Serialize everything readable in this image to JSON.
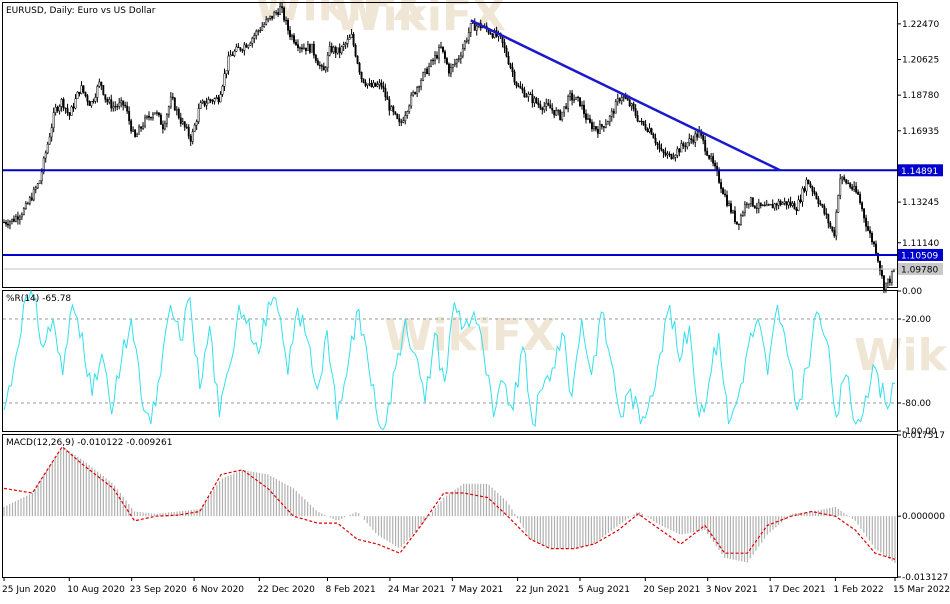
{
  "colors": {
    "candle": "#000000",
    "level_line": "#0000cc",
    "trend_line": "#1a1acc",
    "wpr_line": "#33e0ec",
    "macd_hist": "#b0b0b0",
    "macd_signal": "#e00000",
    "grid_dash": "#9a9a9a",
    "price_tag_bg": "#0000cc",
    "price_tag_text": "#ffffff",
    "current_tag_bg": "#c8c8c8"
  },
  "chart_data": [
    {
      "type": "candlestick",
      "pane": "price",
      "title": "EURUSD, Daily:  Euro vs US Dollar",
      "y_ticks": [
        "1.22470",
        "1.20625",
        "1.18780",
        "1.16935",
        "1.13245",
        "1.11140"
      ],
      "y_tick_values": [
        1.2247,
        1.20625,
        1.1878,
        1.16935,
        1.13245,
        1.1114
      ],
      "ylim": [
        1.0885,
        1.2355
      ],
      "horizontal_levels": [
        {
          "label": "1.14891",
          "value": 1.14891
        },
        {
          "label": "1.10509",
          "value": 1.10509
        }
      ],
      "current_price": {
        "label": "1.09780",
        "value": 1.0978
      },
      "trendline": {
        "start": {
          "date": "2021-05-20",
          "value": 1.2265
        },
        "end": {
          "date": "2021-12-24",
          "value": 1.1489
        }
      },
      "series_points": [
        [
          "2020-06-25",
          1.122
        ],
        [
          "2020-07-01",
          1.123
        ],
        [
          "2020-07-10",
          1.129
        ],
        [
          "2020-07-20",
          1.143
        ],
        [
          "2020-07-25",
          1.16
        ],
        [
          "2020-07-31",
          1.18
        ],
        [
          "2020-08-05",
          1.185
        ],
        [
          "2020-08-10",
          1.177
        ],
        [
          "2020-08-18",
          1.192
        ],
        [
          "2020-08-25",
          1.183
        ],
        [
          "2020-09-01",
          1.195
        ],
        [
          "2020-09-05",
          1.185
        ],
        [
          "2020-09-10",
          1.182
        ],
        [
          "2020-09-18",
          1.183
        ],
        [
          "2020-09-25",
          1.165
        ],
        [
          "2020-10-01",
          1.173
        ],
        [
          "2020-10-09",
          1.18
        ],
        [
          "2020-10-15",
          1.172
        ],
        [
          "2020-10-21",
          1.186
        ],
        [
          "2020-10-28",
          1.174
        ],
        [
          "2020-11-04",
          1.165
        ],
        [
          "2020-11-10",
          1.182
        ],
        [
          "2020-11-16",
          1.185
        ],
        [
          "2020-11-23",
          1.186
        ],
        [
          "2020-12-01",
          1.208
        ],
        [
          "2020-12-08",
          1.212
        ],
        [
          "2020-12-14",
          1.215
        ],
        [
          "2020-12-22",
          1.222
        ],
        [
          "2021-01-06",
          1.233
        ],
        [
          "2021-01-12",
          1.22
        ],
        [
          "2021-01-20",
          1.213
        ],
        [
          "2021-01-28",
          1.212
        ],
        [
          "2021-02-05",
          1.199
        ],
        [
          "2021-02-10",
          1.212
        ],
        [
          "2021-02-16",
          1.21
        ],
        [
          "2021-02-25",
          1.218
        ],
        [
          "2021-03-04",
          1.197
        ],
        [
          "2021-03-10",
          1.192
        ],
        [
          "2021-03-18",
          1.193
        ],
        [
          "2021-03-24",
          1.181
        ],
        [
          "2021-03-31",
          1.172
        ],
        [
          "2021-04-06",
          1.183
        ],
        [
          "2021-04-14",
          1.195
        ],
        [
          "2021-04-22",
          1.204
        ],
        [
          "2021-04-29",
          1.212
        ],
        [
          "2021-05-05",
          1.2
        ],
        [
          "2021-05-12",
          1.208
        ],
        [
          "2021-05-20",
          1.223
        ],
        [
          "2021-05-26",
          1.224
        ],
        [
          "2021-06-02",
          1.221
        ],
        [
          "2021-06-10",
          1.217
        ],
        [
          "2021-06-16",
          1.205
        ],
        [
          "2021-06-22",
          1.192
        ],
        [
          "2021-06-30",
          1.187
        ],
        [
          "2021-07-07",
          1.183
        ],
        [
          "2021-07-15",
          1.181
        ],
        [
          "2021-07-22",
          1.177
        ],
        [
          "2021-07-29",
          1.187
        ],
        [
          "2021-08-05",
          1.184
        ],
        [
          "2021-08-11",
          1.173
        ],
        [
          "2021-08-18",
          1.17
        ],
        [
          "2021-08-26",
          1.176
        ],
        [
          "2021-09-03",
          1.188
        ],
        [
          "2021-09-10",
          1.182
        ],
        [
          "2021-09-17",
          1.173
        ],
        [
          "2021-09-24",
          1.17
        ],
        [
          "2021-10-01",
          1.158
        ],
        [
          "2021-10-07",
          1.156
        ],
        [
          "2021-10-14",
          1.16
        ],
        [
          "2021-10-21",
          1.164
        ],
        [
          "2021-10-28",
          1.168
        ],
        [
          "2021-11-03",
          1.158
        ],
        [
          "2021-11-10",
          1.146
        ],
        [
          "2021-11-17",
          1.132
        ],
        [
          "2021-11-24",
          1.121
        ],
        [
          "2021-12-01",
          1.134
        ],
        [
          "2021-12-08",
          1.13
        ],
        [
          "2021-12-15",
          1.129
        ],
        [
          "2021-12-22",
          1.132
        ],
        [
          "2021-12-29",
          1.132
        ],
        [
          "2022-01-05",
          1.13
        ],
        [
          "2022-01-12",
          1.144
        ],
        [
          "2022-01-19",
          1.135
        ],
        [
          "2022-01-26",
          1.124
        ],
        [
          "2022-01-31",
          1.115
        ],
        [
          "2022-02-04",
          1.145
        ],
        [
          "2022-02-10",
          1.142
        ],
        [
          "2022-02-17",
          1.136
        ],
        [
          "2022-02-24",
          1.118
        ],
        [
          "2022-03-02",
          1.107
        ],
        [
          "2022-03-07",
          1.089
        ],
        [
          "2022-03-11",
          1.092
        ],
        [
          "2022-03-15",
          1.0978
        ]
      ]
    },
    {
      "type": "line",
      "pane": "wpr",
      "title": "%R(14) -65.78",
      "y_ticks": [
        "0.00",
        "-20.00",
        "-80.00",
        "-100.00"
      ],
      "y_tick_values": [
        0,
        -20,
        -80,
        -100
      ],
      "dashed_levels": [
        -20,
        -80
      ],
      "ylim": [
        -100,
        0
      ],
      "series": [
        {
          "values": [
            -85,
            -55,
            -10,
            -5,
            -40,
            -20,
            -60,
            -10,
            -30,
            -75,
            -45,
            -88,
            -50,
            -20,
            -75,
            -95,
            -60,
            -10,
            -35,
            -5,
            -70,
            -25,
            -90,
            -55,
            -10,
            -20,
            -45,
            -8,
            -15,
            -60,
            -12,
            -35,
            -70,
            -28,
            -92,
            -60,
            -15,
            -40,
            -85,
            -95,
            -55,
            -20,
            -45,
            -80,
            -30,
            -65,
            -8,
            -25,
            -15,
            -45,
            -90,
            -65,
            -85,
            -40,
            -95,
            -70,
            -55,
            -30,
            -75,
            -20,
            -60,
            -15,
            -50,
            -90,
            -70,
            -95,
            -75,
            -45,
            -10,
            -50,
            -25,
            -90,
            -65,
            -30,
            -95,
            -75,
            -40,
            -20,
            -60,
            -10,
            -45,
            -85,
            -55,
            -15,
            -35,
            -90,
            -60,
            -95,
            -75,
            -55,
            -80,
            -66
          ]
        }
      ]
    },
    {
      "type": "bar",
      "pane": "macd",
      "title": "MACD(12,26,9) -0.010122 -0.009261",
      "y_ticks": [
        "0.017517",
        "0.000000",
        "-0.013127"
      ],
      "y_tick_values": [
        0.017517,
        0.0,
        -0.013127
      ],
      "ylim": [
        -0.013127,
        0.017517
      ],
      "x": [
        "2020-06-25",
        "2020-07-15",
        "2020-08-05",
        "2020-08-20",
        "2020-09-10",
        "2020-09-25",
        "2020-10-10",
        "2020-10-25",
        "2020-11-10",
        "2020-11-25",
        "2020-12-10",
        "2020-12-28",
        "2021-01-15",
        "2021-02-01",
        "2021-02-15",
        "2021-03-01",
        "2021-03-15",
        "2021-03-31",
        "2021-04-15",
        "2021-05-01",
        "2021-05-15",
        "2021-06-01",
        "2021-06-15",
        "2021-07-01",
        "2021-07-15",
        "2021-08-01",
        "2021-08-15",
        "2021-09-01",
        "2021-09-15",
        "2021-10-01",
        "2021-10-15",
        "2021-11-01",
        "2021-11-15",
        "2021-12-01",
        "2021-12-15",
        "2022-01-01",
        "2022-01-15",
        "2022-02-01",
        "2022-02-15",
        "2022-03-01",
        "2022-03-15"
      ],
      "series": [
        {
          "values": [
            0.002,
            0.005,
            0.015,
            0.012,
            0.007,
            0.001,
            0.0005,
            0.001,
            0.0015,
            0.008,
            0.01,
            0.009,
            0.006,
            0.001,
            -0.001,
            0.001,
            -0.004,
            -0.007,
            -0.002,
            0.004,
            0.007,
            0.007,
            0.003,
            -0.005,
            -0.007,
            -0.007,
            -0.006,
            -0.002,
            0.001,
            -0.002,
            -0.004,
            -0.003,
            -0.009,
            -0.01,
            -0.004,
            0.0005,
            0.001,
            0.002,
            -0.001,
            -0.007,
            -0.0101
          ]
        },
        {
          "values": [
            0.006,
            0.005,
            0.015,
            0.011,
            0.006,
            -0.001,
            0.0,
            0.0002,
            0.001,
            0.009,
            0.01,
            0.006,
            0.0,
            -0.0015,
            -0.0015,
            -0.005,
            -0.006,
            -0.008,
            -0.002,
            0.005,
            0.005,
            0.004,
            0.0,
            -0.005,
            -0.007,
            -0.007,
            -0.006,
            -0.003,
            0.0005,
            -0.003,
            -0.006,
            -0.002,
            -0.008,
            -0.008,
            -0.002,
            0.0,
            0.001,
            0.0,
            -0.003,
            -0.008,
            -0.0093
          ]
        }
      ]
    }
  ],
  "x_axis": {
    "ticks": [
      {
        "label": "25 Jun 2020",
        "date": "2020-06-25"
      },
      {
        "label": "10 Aug 2020",
        "date": "2020-08-10"
      },
      {
        "label": "23 Sep 2020",
        "date": "2020-09-23"
      },
      {
        "label": "6 Nov 2020",
        "date": "2020-11-06"
      },
      {
        "label": "22 Dec 2020",
        "date": "2020-12-22"
      },
      {
        "label": "8 Feb 2021",
        "date": "2021-02-08"
      },
      {
        "label": "24 Mar 2021",
        "date": "2021-03-24"
      },
      {
        "label": "7 May 2021",
        "date": "2021-05-07"
      },
      {
        "label": "22 Jun 2021",
        "date": "2021-06-22"
      },
      {
        "label": "5 Aug 2021",
        "date": "2021-08-05"
      },
      {
        "label": "20 Sep 2021",
        "date": "2021-09-20"
      },
      {
        "label": "3 Nov 2021",
        "date": "2021-11-03"
      },
      {
        "label": "17 Dec 2021",
        "date": "2021-12-17"
      },
      {
        "label": "1 Feb 2022",
        "date": "2022-02-01"
      },
      {
        "label": "15 Mar 2022",
        "date": "2022-03-15"
      }
    ]
  },
  "watermark": {
    "text": "WikiFX"
  }
}
